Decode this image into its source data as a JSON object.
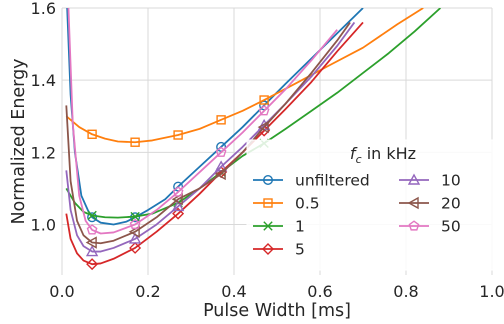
{
  "chart_data": {
    "type": "line",
    "xlabel": "Pulse Width [ms]",
    "ylabel": "Normalized Energy",
    "xlim": [
      0.0,
      1.0
    ],
    "ylim": [
      0.86,
      1.6
    ],
    "xticks": [
      0.0,
      0.2,
      0.4,
      0.6,
      0.8,
      1.0
    ],
    "yticks": [
      1.0,
      1.2,
      1.4,
      1.6
    ],
    "xtick_labels": [
      "0.0",
      "0.2",
      "0.4",
      "0.6",
      "0.8",
      "1.0"
    ],
    "ytick_labels": [
      "1.0",
      "1.2",
      "1.4",
      "1.6"
    ],
    "grid": true,
    "legend_title_main": "f",
    "legend_title_sub": "c",
    "legend_title_rest": " in kHz",
    "legend_placement": "lower-right",
    "marker_x": [
      0.07,
      0.17,
      0.27,
      0.37,
      0.47
    ],
    "series": [
      {
        "name": "unfiltered",
        "color": "#1f77b4",
        "marker": "circle",
        "x": [
          0.012,
          0.02,
          0.03,
          0.045,
          0.06,
          0.07,
          0.09,
          0.12,
          0.15,
          0.17,
          0.2,
          0.24,
          0.27,
          0.32,
          0.37,
          0.42,
          0.47,
          0.52,
          0.58,
          0.64,
          0.7
        ],
        "y": [
          1.6,
          1.36,
          1.2,
          1.08,
          1.04,
          1.02,
          1.005,
          1.0,
          1.008,
          1.02,
          1.04,
          1.07,
          1.105,
          1.16,
          1.215,
          1.27,
          1.33,
          1.39,
          1.46,
          1.53,
          1.6
        ]
      },
      {
        "name": "0.5",
        "color": "#ff7f0e",
        "marker": "square",
        "x": [
          0.01,
          0.04,
          0.07,
          0.1,
          0.13,
          0.17,
          0.21,
          0.27,
          0.32,
          0.37,
          0.42,
          0.47,
          0.55,
          0.62,
          0.7,
          0.78,
          0.84
        ],
        "y": [
          1.3,
          1.27,
          1.25,
          1.238,
          1.23,
          1.228,
          1.233,
          1.248,
          1.265,
          1.29,
          1.315,
          1.345,
          1.395,
          1.44,
          1.49,
          1.555,
          1.6
        ]
      },
      {
        "name": "1",
        "color": "#2ca02c",
        "marker": "x",
        "x": [
          0.01,
          0.03,
          0.05,
          0.07,
          0.1,
          0.13,
          0.17,
          0.21,
          0.27,
          0.32,
          0.37,
          0.42,
          0.47,
          0.52,
          0.58,
          0.64,
          0.7,
          0.76,
          0.82,
          0.88
        ],
        "y": [
          1.1,
          1.06,
          1.035,
          1.025,
          1.02,
          1.019,
          1.022,
          1.03,
          1.06,
          1.1,
          1.145,
          1.19,
          1.225,
          1.265,
          1.315,
          1.365,
          1.42,
          1.475,
          1.535,
          1.6
        ]
      },
      {
        "name": "5",
        "color": "#d62728",
        "marker": "diamond",
        "x": [
          0.01,
          0.02,
          0.035,
          0.05,
          0.07,
          0.09,
          0.12,
          0.17,
          0.22,
          0.27,
          0.32,
          0.37,
          0.42,
          0.47,
          0.52,
          0.58,
          0.64,
          0.7
        ],
        "y": [
          1.03,
          0.96,
          0.92,
          0.9,
          0.89,
          0.892,
          0.905,
          0.935,
          0.98,
          1.03,
          1.085,
          1.145,
          1.2,
          1.26,
          1.32,
          1.395,
          1.48,
          1.56
        ]
      },
      {
        "name": "10",
        "color": "#9467bd",
        "marker": "triangle-up",
        "x": [
          0.01,
          0.02,
          0.035,
          0.05,
          0.07,
          0.09,
          0.12,
          0.17,
          0.22,
          0.27,
          0.32,
          0.37,
          0.42,
          0.47,
          0.52,
          0.58,
          0.64,
          0.68
        ],
        "y": [
          1.15,
          1.04,
          0.97,
          0.94,
          0.925,
          0.925,
          0.935,
          0.96,
          1.0,
          1.05,
          1.1,
          1.16,
          1.215,
          1.275,
          1.335,
          1.41,
          1.495,
          1.56
        ]
      },
      {
        "name": "20",
        "color": "#8c564b",
        "marker": "triangle-left",
        "x": [
          0.01,
          0.02,
          0.035,
          0.05,
          0.07,
          0.09,
          0.12,
          0.17,
          0.22,
          0.27,
          0.32,
          0.37,
          0.42,
          0.47,
          0.52,
          0.58,
          0.64,
          0.67
        ],
        "y": [
          1.33,
          1.12,
          1.01,
          0.97,
          0.95,
          0.948,
          0.955,
          0.98,
          1.02,
          1.07,
          1.1,
          1.14,
          1.2,
          1.27,
          1.335,
          1.42,
          1.51,
          1.56
        ]
      },
      {
        "name": "50",
        "color": "#e377c2",
        "marker": "pentagon",
        "x": [
          0.015,
          0.025,
          0.04,
          0.055,
          0.07,
          0.09,
          0.12,
          0.17,
          0.22,
          0.27,
          0.32,
          0.37,
          0.42,
          0.47,
          0.52,
          0.58,
          0.64
        ],
        "y": [
          1.6,
          1.28,
          1.08,
          1.01,
          0.985,
          0.975,
          0.978,
          1.0,
          1.04,
          1.09,
          1.145,
          1.2,
          1.255,
          1.315,
          1.375,
          1.455,
          1.54
        ]
      }
    ]
  }
}
